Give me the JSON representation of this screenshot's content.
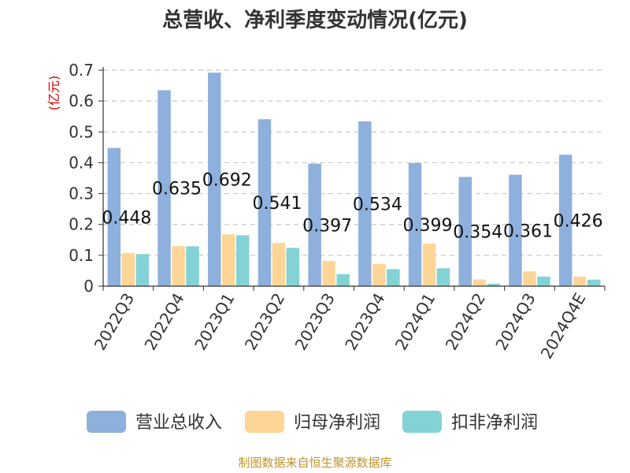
{
  "chart_data": {
    "type": "bar",
    "title": "总营收、净利季度变动情况(亿元)",
    "ylabel": "(亿元)",
    "xlabel": "",
    "ylim": [
      0,
      0.7
    ],
    "yticks": [
      "0",
      "0.1",
      "0.2",
      "0.3",
      "0.4",
      "0.5",
      "0.6",
      "0.7"
    ],
    "grid": "horizontal-dashed",
    "legend_position": "bottom",
    "categories": [
      "2022Q3",
      "2022Q4",
      "2023Q1",
      "2023Q2",
      "2023Q3",
      "2023Q4",
      "2024Q1",
      "2024Q2",
      "2024Q3",
      "2024Q4E"
    ],
    "series": [
      {
        "name": "营业总收入",
        "color": "#8eb0dc",
        "values": [
          0.448,
          0.635,
          0.692,
          0.541,
          0.397,
          0.534,
          0.399,
          0.354,
          0.361,
          0.426
        ]
      },
      {
        "name": "归母净利润",
        "color": "#fdd697",
        "values": [
          0.108,
          0.13,
          0.168,
          0.14,
          0.082,
          0.072,
          0.138,
          0.022,
          0.048,
          0.031
        ]
      },
      {
        "name": "扣非净利润",
        "color": "#82d2d6",
        "values": [
          0.104,
          0.129,
          0.165,
          0.124,
          0.039,
          0.055,
          0.058,
          0.008,
          0.031,
          0.021
        ]
      }
    ],
    "data_labels": [
      "0.448",
      "0.635",
      "0.692",
      "0.541",
      "0.397",
      "0.534",
      "0.399",
      "0.354",
      "0.361",
      "0.426"
    ],
    "source": "制图数据来自恒生聚源数据库"
  }
}
